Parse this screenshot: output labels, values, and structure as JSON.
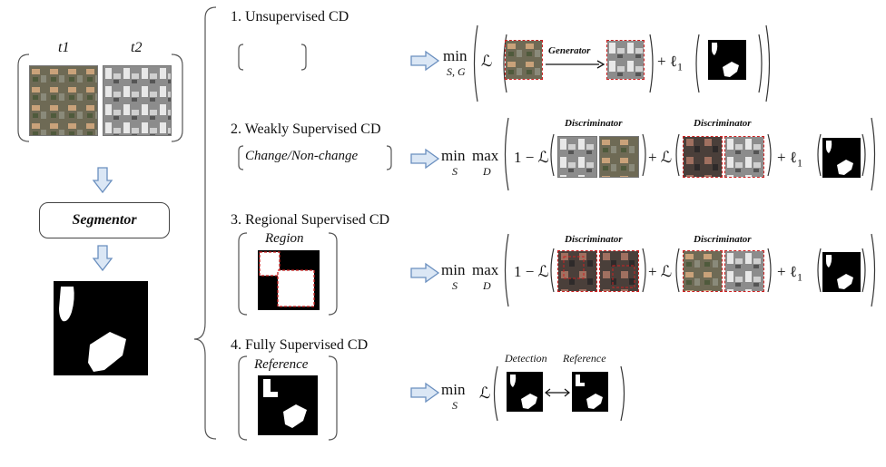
{
  "left": {
    "label_t1": "t1",
    "label_t2": "t2",
    "segmentor": "Segmentor"
  },
  "rows": [
    {
      "title": "1. Unsupervised CD",
      "input_label": "",
      "formula": {
        "min": "min",
        "min_sub": "S, G",
        "L": "ℒ",
        "plus_l1": "+ ℓ",
        "l1_sub": "1",
        "arrow_label": "Generator"
      }
    },
    {
      "title": "2. Weakly Supervised CD",
      "input_label": "Change/Non-change",
      "formula": {
        "min": "min",
        "min_sub": "S",
        "max": "max",
        "max_sub": "D",
        "one_minus": "1 − ℒ",
        "plus_L": "+ ℒ",
        "plus_l1": "+ ℓ",
        "l1_sub": "1",
        "disc1": "Discriminator",
        "disc2": "Discriminator"
      }
    },
    {
      "title": "3. Regional Supervised CD",
      "input_label": "Region",
      "formula": {
        "min": "min",
        "min_sub": "S",
        "max": "max",
        "max_sub": "D",
        "one_minus": "1 − ℒ",
        "plus_L": "+ ℒ",
        "plus_l1": "+ ℓ",
        "l1_sub": "1",
        "disc1": "Discriminator",
        "disc2": "Discriminator"
      }
    },
    {
      "title": "4. Fully Supervised CD",
      "input_label": "Reference",
      "formula": {
        "min": "min",
        "min_sub": "S",
        "L": "ℒ",
        "detection": "Detection",
        "reference": "Reference"
      }
    }
  ],
  "colors": {
    "arrow_fill": "#dbe7f5",
    "arrow_stroke": "#6a8fbf",
    "dashed_red": "#c22",
    "ink": "#111"
  }
}
